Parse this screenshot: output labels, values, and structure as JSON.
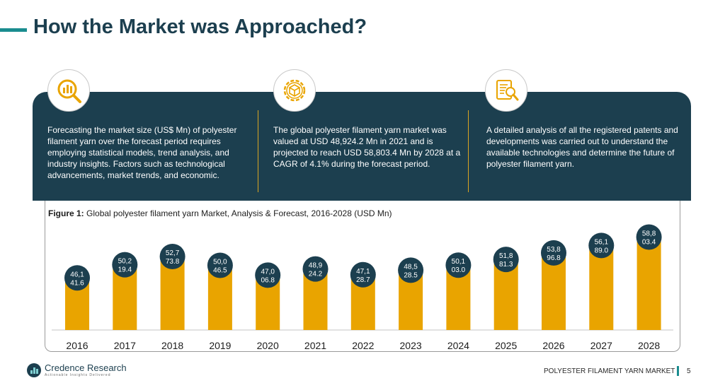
{
  "slide": {
    "title": "How the Market was Approached?",
    "page_number": "5",
    "footer_report": "POLYESTER FILAMENT YARN MARKET",
    "brand": {
      "name": "Credence Research",
      "tagline": "Actionable Insights Delivered"
    }
  },
  "approach": [
    {
      "icon": "chart-magnifier-icon",
      "text": "Forecasting the market size (US$ Mn) of polyester filament yarn over the forecast period requires employing statistical models, trend analysis, and industry insights. Factors such as technological advancements, market trends, and economic."
    },
    {
      "icon": "gear-cube-icon",
      "text": "The global polyester filament yarn market was valued at USD 48,924.2 Mn in 2021 and is projected to reach USD 58,803.4 Mn by 2028 at a CAGR of 4.1% during the forecast period."
    },
    {
      "icon": "document-search-icon",
      "text": "A detailed analysis of all the registered patents and developments was carried out to understand the available technologies and determine the future of polyester filament yarn."
    }
  ],
  "figure": {
    "label": "Figure 1:",
    "caption": "Global polyester filament yarn Market, Analysis & Forecast, 2016-2028 (USD Mn)"
  },
  "colors": {
    "bar": "#e9a400",
    "bubble": "#1c3f4f",
    "panel": "#1c3f4f",
    "accent": "#1a8c8f",
    "divider": "#d9a521"
  },
  "chart_data": {
    "type": "bar",
    "categories": [
      "2016",
      "2017",
      "2018",
      "2019",
      "2020",
      "2021",
      "2022",
      "2023",
      "2024",
      "2025",
      "2026",
      "2027",
      "2028"
    ],
    "values": [
      46141.6,
      50219.4,
      52773.8,
      50046.5,
      47006.8,
      48924.2,
      47128.7,
      48528.5,
      50103.0,
      51881.3,
      53896.8,
      56189.0,
      58803.4
    ],
    "data_labels": [
      [
        "46,1",
        "41.6"
      ],
      [
        "50,2",
        "19.4"
      ],
      [
        "52,7",
        "73.8"
      ],
      [
        "50,0",
        "46.5"
      ],
      [
        "47,0",
        "06.8"
      ],
      [
        "48,9",
        "24.2"
      ],
      [
        "47,1",
        "28.7"
      ],
      [
        "48,5",
        "28.5"
      ],
      [
        "50,1",
        "03.0"
      ],
      [
        "51,8",
        "81.3"
      ],
      [
        "53,8",
        "96.8"
      ],
      [
        "56,1",
        "89.0"
      ],
      [
        "58,8",
        "03.4"
      ]
    ],
    "title": "Global polyester filament yarn Market, Analysis & Forecast, 2016-2028 (USD Mn)",
    "xlabel": "",
    "ylabel": "",
    "ylim": [
      30000,
      60000
    ],
    "grid": false,
    "legend": "none"
  }
}
